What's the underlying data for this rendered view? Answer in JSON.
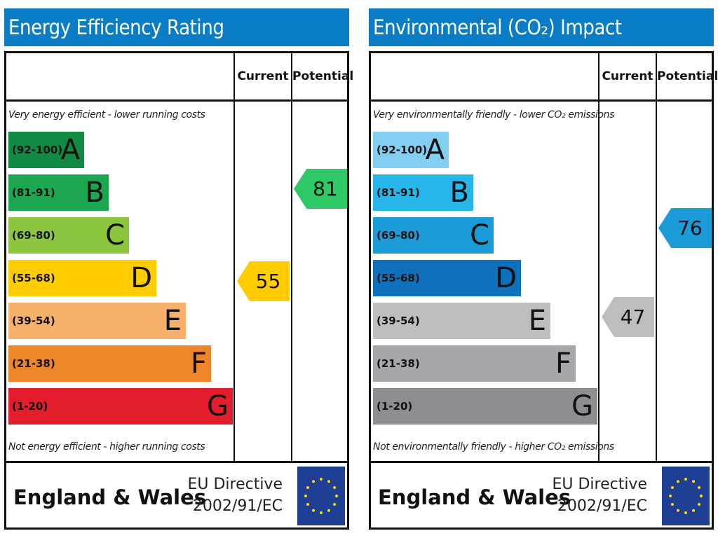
{
  "panels": [
    {
      "title": "Energy Efficiency Rating",
      "current_label": "Current",
      "potential_label": "Potential",
      "top_note": "Very energy efficient - lower running costs",
      "bottom_note": "Not energy efficient - higher running costs",
      "footer": "England & Wales",
      "directive_line1": "EU Directive",
      "directive_line2": "2002/91/EC",
      "bands": [
        {
          "range": "(92-100)",
          "letter": "A",
          "color": "#138a43"
        },
        {
          "range": "(81-91)",
          "letter": "B",
          "color": "#1ca650"
        },
        {
          "range": "(69-80)",
          "letter": "C",
          "color": "#8cc63f"
        },
        {
          "range": "(55-68)",
          "letter": "D",
          "color": "#ffcc00"
        },
        {
          "range": "(39-54)",
          "letter": "E",
          "color": "#f7b06a"
        },
        {
          "range": "(21-38)",
          "letter": "F",
          "color": "#ef8529"
        },
        {
          "range": "(1-20)",
          "letter": "G",
          "color": "#e31d2b"
        }
      ],
      "current": {
        "value": "55",
        "color": "#ffcc00"
      },
      "potential": {
        "value": "81",
        "color": "#2ec866"
      }
    },
    {
      "title": "Environmental (CO₂) Impact Rating",
      "current_label": "Current",
      "potential_label": "Potential",
      "top_note": "Very environmentally friendly - lower CO₂ emissions",
      "bottom_note": "Not environmentally friendly - higher CO₂ emissions",
      "footer": "England & Wales",
      "directive_line1": "EU Directive",
      "directive_line2": "2002/91/EC",
      "bands": [
        {
          "range": "(92-100)",
          "letter": "A",
          "color": "#82cff2"
        },
        {
          "range": "(81-91)",
          "letter": "B",
          "color": "#28b5ea"
        },
        {
          "range": "(69-80)",
          "letter": "C",
          "color": "#1b9bd8"
        },
        {
          "range": "(55-68)",
          "letter": "D",
          "color": "#0f70bb"
        },
        {
          "range": "(39-54)",
          "letter": "E",
          "color": "#bcbec0"
        },
        {
          "range": "(21-38)",
          "letter": "F",
          "color": "#a5a7aa"
        },
        {
          "range": "(1-20)",
          "letter": "G",
          "color": "#8c8e91"
        }
      ],
      "current": {
        "value": "47",
        "color": "#bcbec0"
      },
      "potential": {
        "value": "76",
        "color": "#1b9bd8"
      }
    }
  ],
  "chart_data": [
    {
      "type": "bar",
      "title": "Energy Efficiency Rating",
      "categories": [
        "A",
        "B",
        "C",
        "D",
        "E",
        "F",
        "G"
      ],
      "ranges": [
        "92-100",
        "81-91",
        "69-80",
        "55-68",
        "39-54",
        "21-38",
        "1-20"
      ],
      "current": 55,
      "potential": 81
    },
    {
      "type": "bar",
      "title": "Environmental (CO₂) Impact Rating",
      "categories": [
        "A",
        "B",
        "C",
        "D",
        "E",
        "F",
        "G"
      ],
      "ranges": [
        "92-100",
        "81-91",
        "69-80",
        "55-68",
        "39-54",
        "21-38",
        "1-20"
      ],
      "current": 47,
      "potential": 76
    }
  ]
}
